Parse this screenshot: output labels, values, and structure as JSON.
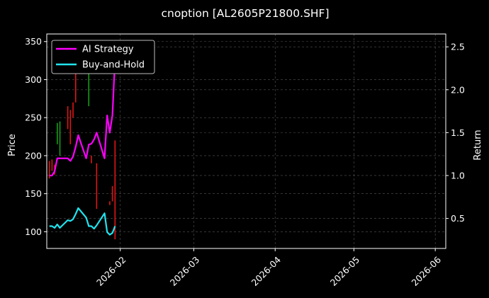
{
  "chart_data": {
    "type": "line",
    "title": "cnoption [AL2605P21800.SHF]",
    "x_tick_labels": [
      "2026-02",
      "2026-03",
      "2026-04",
      "2026-05",
      "2026-06"
    ],
    "x_ticks": [
      "2026-02-01",
      "2026-03-01",
      "2026-04-01",
      "2026-05-01",
      "2026-06-01"
    ],
    "xlim": [
      "2026-01-04",
      "2026-06-05"
    ],
    "ylabel_left": "Price",
    "ylabel_right": "Return",
    "ylim_left": [
      78,
      360
    ],
    "ylim_right": [
      0.15,
      2.65
    ],
    "y_ticks_left": [
      100,
      150,
      200,
      250,
      300,
      350
    ],
    "y_ticks_right": [
      0.5,
      1.0,
      1.5,
      2.0,
      2.5
    ],
    "grid": true,
    "legend_position": "upper-left",
    "colors": {
      "up": "#1a9c1a",
      "down": "#e01616",
      "strategy": "#ff00ff",
      "buyhold": "#22e3ee",
      "grid": "#555555"
    },
    "candles": [
      {
        "x": "2026-01-05",
        "low": 170,
        "high": 193,
        "up": false
      },
      {
        "x": "2026-01-06",
        "low": 180,
        "high": 195,
        "up": false
      },
      {
        "x": "2026-01-07",
        "low": 175,
        "high": 188,
        "up": false
      },
      {
        "x": "2026-01-08",
        "low": 215,
        "high": 243,
        "up": true
      },
      {
        "x": "2026-01-09",
        "low": 200,
        "high": 245,
        "up": true
      },
      {
        "x": "2026-01-12",
        "low": 235,
        "high": 265,
        "up": false
      },
      {
        "x": "2026-01-13",
        "low": 215,
        "high": 260,
        "up": false
      },
      {
        "x": "2026-01-14",
        "low": 250,
        "high": 270,
        "up": false
      },
      {
        "x": "2026-01-15",
        "low": 270,
        "high": 310,
        "up": false
      },
      {
        "x": "2026-01-16",
        "low": 330,
        "high": 345,
        "up": true
      },
      {
        "x": "2026-01-20",
        "low": 265,
        "high": 310,
        "up": true
      },
      {
        "x": "2026-01-21",
        "low": 190,
        "high": 200,
        "up": false
      },
      {
        "x": "2026-01-23",
        "low": 130,
        "high": 190,
        "up": false
      },
      {
        "x": "2026-01-28",
        "low": 135,
        "high": 140,
        "up": false
      },
      {
        "x": "2026-01-29",
        "low": 140,
        "high": 160,
        "up": false
      },
      {
        "x": "2026-01-30",
        "low": 90,
        "high": 220,
        "up": false
      }
    ],
    "series": [
      {
        "name": "AI Strategy",
        "x": [
          "2026-01-05",
          "2026-01-06",
          "2026-01-07",
          "2026-01-08",
          "2026-01-09",
          "2026-01-12",
          "2026-01-13",
          "2026-01-14",
          "2026-01-15",
          "2026-01-16",
          "2026-01-19",
          "2026-01-20",
          "2026-01-21",
          "2026-01-22",
          "2026-01-23",
          "2026-01-26",
          "2026-01-27",
          "2026-01-28",
          "2026-01-29",
          "2026-01-30"
        ],
        "values": [
          1.0,
          1.0,
          1.05,
          1.2,
          1.2,
          1.2,
          1.17,
          1.22,
          1.33,
          1.47,
          1.2,
          1.36,
          1.37,
          1.42,
          1.5,
          1.2,
          1.7,
          1.5,
          1.7,
          2.35
        ]
      },
      {
        "name": "Buy-and-Hold",
        "x": [
          "2026-01-05",
          "2026-01-06",
          "2026-01-07",
          "2026-01-08",
          "2026-01-09",
          "2026-01-12",
          "2026-01-13",
          "2026-01-14",
          "2026-01-15",
          "2026-01-16",
          "2026-01-19",
          "2026-01-20",
          "2026-01-21",
          "2026-01-22",
          "2026-01-23",
          "2026-01-26",
          "2026-01-27",
          "2026-01-28",
          "2026-01-29",
          "2026-01-30"
        ],
        "values": [
          0.41,
          0.41,
          0.39,
          0.43,
          0.39,
          0.48,
          0.47,
          0.49,
          0.55,
          0.62,
          0.51,
          0.41,
          0.41,
          0.38,
          0.42,
          0.56,
          0.34,
          0.31,
          0.33,
          0.41
        ]
      }
    ]
  }
}
